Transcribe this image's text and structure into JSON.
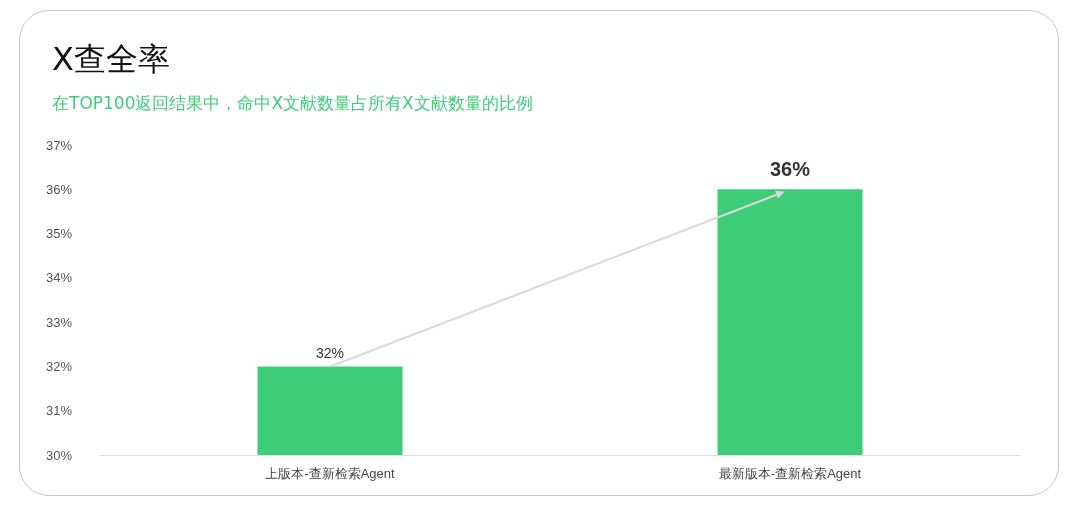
{
  "chart_data": {
    "type": "bar",
    "title": "X查全率",
    "subtitle": "在TOP100返回结果中，命中X文献数量占所有X文献数量的比例",
    "categories": [
      "上版本-查新检索Agent",
      "最新版本-查新检索Agent"
    ],
    "values": [
      32,
      36
    ],
    "color": "#3ecc79",
    "value_labels": [
      "32%",
      "36%"
    ],
    "ylim": [
      30,
      37
    ],
    "yticks": [
      {
        "value": 30,
        "label": "30%"
      },
      {
        "value": 31,
        "label": "31%"
      },
      {
        "value": 32,
        "label": "32%"
      },
      {
        "value": 33,
        "label": "33%"
      },
      {
        "value": 34,
        "label": "34%"
      },
      {
        "value": 35,
        "label": "35%"
      },
      {
        "value": 36,
        "label": "36%"
      },
      {
        "value": 37,
        "label": "37%"
      }
    ],
    "grid": false
  }
}
